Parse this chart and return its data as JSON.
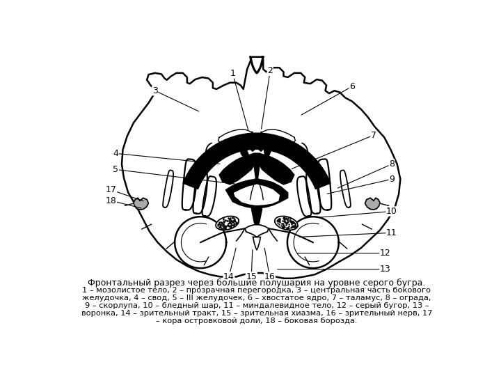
{
  "title": "Фронтальный разрез через большие полушария на уровне серого бугра.",
  "caption": [
    "1 – мозолистое тело, 2 – прозрачная перегородка, 3 – центральная часть бокового",
    "желудочка, 4 – свод, 5 – III желудочек, 6 – хвостатое ядро, 7 – таламус, 8 – ограда,",
    "9 – скорлупа, 10 – бледный шар, 11 – миндалевидное тело, 12 – серый бугор, 13 –",
    "воронка, 14 – зрительный тракт, 15 – зрительная хиазма, 16 – зрительный нерв, 17",
    "– кора островковой доли, 18 – боковая борозда."
  ],
  "bg": "#ffffff",
  "lc": "#000000",
  "labels": {
    "1": [
      315,
      487,
      345,
      378
    ],
    "2": [
      385,
      492,
      368,
      380
    ],
    "3": [
      170,
      455,
      255,
      415
    ],
    "4": [
      97,
      338,
      295,
      318
    ],
    "5": [
      97,
      308,
      345,
      278
    ],
    "6": [
      538,
      463,
      440,
      408
    ],
    "7": [
      578,
      372,
      422,
      308
    ],
    "8": [
      612,
      318,
      508,
      272
    ],
    "9": [
      612,
      290,
      488,
      262
    ],
    "10": [
      612,
      230,
      468,
      218
    ],
    "11": [
      612,
      190,
      436,
      182
    ],
    "12": [
      600,
      152,
      432,
      152
    ],
    "13": [
      600,
      122,
      395,
      122
    ],
    "14": [
      308,
      108,
      322,
      165
    ],
    "15": [
      350,
      108,
      352,
      162
    ],
    "16": [
      384,
      108,
      374,
      165
    ],
    "17": [
      88,
      270,
      152,
      248
    ],
    "18": [
      88,
      250,
      148,
      235
    ]
  }
}
